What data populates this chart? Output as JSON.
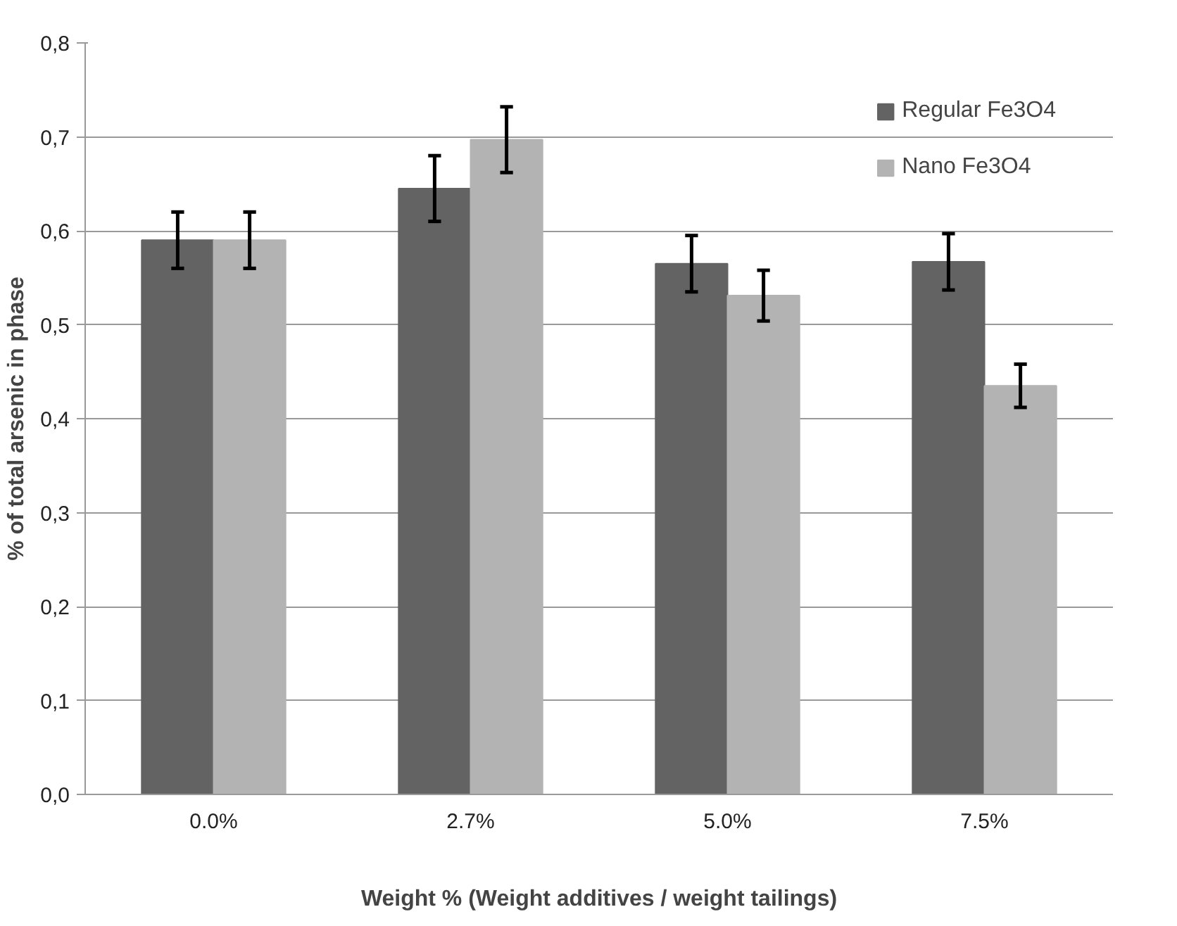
{
  "chart_data": {
    "type": "bar",
    "xlabel": "Weight % (Weight additives / weight tailings)",
    "ylabel": "% of total arsenic in phase",
    "categories": [
      "0.0%",
      "2.7%",
      "5.0%",
      "7.5%"
    ],
    "series": [
      {
        "name": "Regular Fe3O4",
        "color": "#636363",
        "values": [
          0.59,
          0.645,
          0.565,
          0.567
        ],
        "errors": [
          0.03,
          0.035,
          0.03,
          0.03
        ]
      },
      {
        "name": "Nano Fe3O4",
        "color": "#b3b3b3",
        "values": [
          0.59,
          0.697,
          0.531,
          0.435
        ],
        "errors": [
          0.03,
          0.035,
          0.027,
          0.023
        ]
      }
    ],
    "ylim": [
      0,
      0.8
    ],
    "yticks": [
      {
        "value": 0,
        "label": "0,0"
      },
      {
        "value": 0.1,
        "label": "0,1"
      },
      {
        "value": 0.2,
        "label": "0,2"
      },
      {
        "value": 0.3,
        "label": "0,3"
      },
      {
        "value": 0.4,
        "label": "0,4"
      },
      {
        "value": 0.5,
        "label": "0,5"
      },
      {
        "value": 0.6,
        "label": "0,6"
      },
      {
        "value": 0.7,
        "label": "0,7"
      },
      {
        "value": 0.8,
        "label": "0,8"
      }
    ],
    "grid": "y",
    "legend": "top right"
  }
}
